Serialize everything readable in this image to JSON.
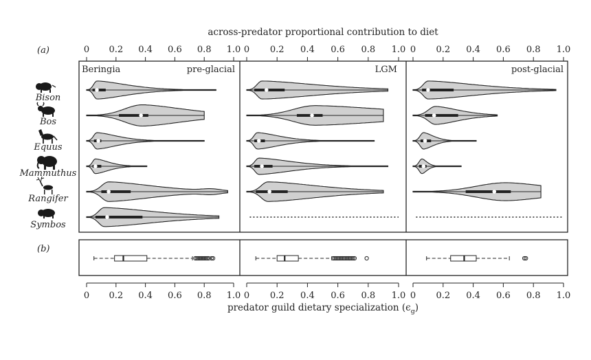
{
  "chart_data": {
    "type": "violin",
    "top_axis_label": "across-predator proportional contribution to diet",
    "bottom_axis_label": "predator guild dietary specialization (ϵ",
    "bottom_axis_label_sub": "g",
    "bottom_axis_label_end": ")",
    "panel_a_label": "(a)",
    "panel_b_label": "(b)",
    "region_label": "Beringia",
    "xlim": [
      0,
      1
    ],
    "ticks": [
      "0",
      "0.2",
      "0.4",
      "0.6",
      "0.8",
      "1.0"
    ],
    "tick_values": [
      0,
      0.2,
      0.4,
      0.6,
      0.8,
      1.0
    ],
    "taxa": [
      "Bison",
      "Bos",
      "Equus",
      "Mammuthus",
      "Rangifer",
      "Symbos"
    ],
    "periods": [
      {
        "name": "pre-glacial",
        "violins": [
          {
            "taxon": "Bison",
            "min": 0.0,
            "max": 0.88,
            "q1": 0.04,
            "median": 0.07,
            "q3": 0.13,
            "mode": 0.07,
            "skew": 0.2,
            "width": 0.55
          },
          {
            "taxon": "Bos",
            "min": 0.0,
            "max": 0.8,
            "q1": 0.22,
            "median": 0.37,
            "q3": 0.42,
            "mode": 0.38,
            "skew": 0.55,
            "width": 0.65
          },
          {
            "taxon": "Equus",
            "min": 0.0,
            "max": 0.8,
            "q1": 0.05,
            "median": 0.08,
            "q3": 0.1,
            "mode": 0.07,
            "skew": 0.15,
            "width": 0.5
          },
          {
            "taxon": "Mammuthus",
            "min": 0.0,
            "max": 0.41,
            "q1": 0.04,
            "median": 0.06,
            "q3": 0.1,
            "mode": 0.06,
            "skew": 0.2,
            "width": 0.45
          },
          {
            "taxon": "Rangifer",
            "min": 0.0,
            "max": 0.96,
            "q1": 0.1,
            "median": 0.15,
            "q3": 0.3,
            "mode": 0.15,
            "skew": 0.3,
            "width": 0.6,
            "bulge": {
              "center": 0.85,
              "sigma": 0.09,
              "height": 0.18
            }
          },
          {
            "taxon": "Symbos",
            "min": 0.0,
            "max": 0.9,
            "q1": 0.06,
            "median": 0.14,
            "q3": 0.38,
            "mode": 0.12,
            "skew": 0.35,
            "width": 0.58
          }
        ]
      },
      {
        "name": "LGM",
        "violins": [
          {
            "taxon": "Bison",
            "min": 0.0,
            "max": 0.93,
            "q1": 0.05,
            "median": 0.13,
            "q3": 0.25,
            "mode": 0.1,
            "skew": 0.35,
            "width": 0.55
          },
          {
            "taxon": "Bos",
            "min": 0.0,
            "max": 0.9,
            "q1": 0.33,
            "median": 0.43,
            "q3": 0.5,
            "mode": 0.45,
            "skew": 0.9,
            "width": 0.6
          },
          {
            "taxon": "Equus",
            "min": 0.0,
            "max": 0.84,
            "q1": 0.05,
            "median": 0.08,
            "q3": 0.12,
            "mode": 0.07,
            "skew": 0.15,
            "width": 0.5
          },
          {
            "taxon": "Mammuthus",
            "min": 0.0,
            "max": 0.93,
            "q1": 0.05,
            "median": 0.1,
            "q3": 0.17,
            "mode": 0.08,
            "skew": 0.2,
            "width": 0.5
          },
          {
            "taxon": "Rangifer",
            "min": 0.0,
            "max": 0.9,
            "q1": 0.06,
            "median": 0.15,
            "q3": 0.27,
            "mode": 0.14,
            "skew": 0.35,
            "width": 0.6
          },
          {
            "taxon": "Symbos",
            "absent": true
          }
        ]
      },
      {
        "name": "post-glacial",
        "violins": [
          {
            "taxon": "Bison",
            "min": 0.0,
            "max": 0.95,
            "q1": 0.06,
            "median": 0.1,
            "q3": 0.27,
            "mode": 0.1,
            "skew": 0.3,
            "width": 0.55
          },
          {
            "taxon": "Bos",
            "min": 0.0,
            "max": 0.56,
            "q1": 0.08,
            "median": 0.14,
            "q3": 0.3,
            "mode": 0.15,
            "skew": 0.3,
            "width": 0.55
          },
          {
            "taxon": "Equus",
            "min": 0.0,
            "max": 0.42,
            "q1": 0.05,
            "median": 0.08,
            "q3": 0.12,
            "mode": 0.07,
            "skew": 0.15,
            "width": 0.5
          },
          {
            "taxon": "Mammuthus",
            "min": 0.0,
            "max": 0.32,
            "q1": 0.04,
            "median": 0.07,
            "q3": 0.09,
            "mode": 0.06,
            "skew": 0.1,
            "width": 0.45
          },
          {
            "taxon": "Rangifer",
            "min": 0.0,
            "max": 0.85,
            "q1": 0.35,
            "median": 0.54,
            "q3": 0.65,
            "mode": 0.62,
            "skew": 1.0,
            "width": 0.55
          },
          {
            "taxon": "Symbos",
            "absent": true
          }
        ]
      }
    ],
    "boxplots": [
      {
        "period": "pre-glacial",
        "whisker_low": 0.05,
        "q1": 0.19,
        "median": 0.25,
        "q3": 0.41,
        "whisker_high": 0.72,
        "outliers": [
          0.74,
          0.75,
          0.76,
          0.77,
          0.78,
          0.79,
          0.8,
          0.81,
          0.82,
          0.83,
          0.85,
          0.86
        ]
      },
      {
        "period": "LGM",
        "whisker_low": 0.06,
        "q1": 0.2,
        "median": 0.25,
        "q3": 0.34,
        "whisker_high": 0.56,
        "outliers": [
          0.57,
          0.58,
          0.59,
          0.6,
          0.61,
          0.62,
          0.63,
          0.64,
          0.65,
          0.66,
          0.67,
          0.68,
          0.69,
          0.7,
          0.71,
          0.79
        ]
      },
      {
        "period": "post-glacial",
        "whisker_low": 0.09,
        "q1": 0.25,
        "median": 0.34,
        "q3": 0.42,
        "whisker_high": 0.64,
        "outliers": [
          0.74,
          0.75
        ]
      }
    ],
    "colors": {
      "violin_fill": "#d0d0d0",
      "stroke": "#222222",
      "median_dot": "#ffffff",
      "background": "#ffffff"
    },
    "icons": [
      "bison-silhouette",
      "bos-silhouette",
      "horse-silhouette",
      "mammoth-silhouette",
      "reindeer-silhouette",
      "muskox-silhouette"
    ]
  }
}
